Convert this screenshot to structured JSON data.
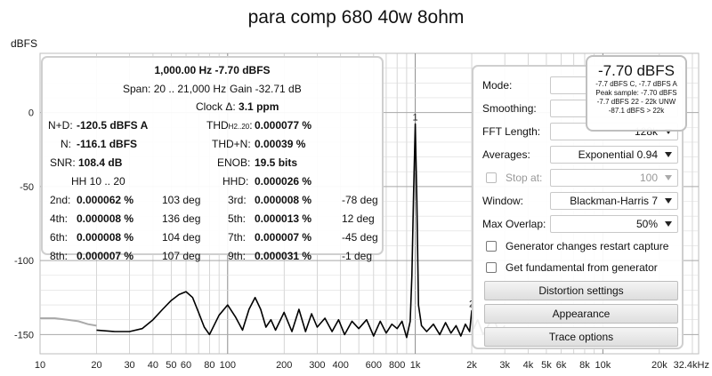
{
  "chart_data": {
    "type": "line",
    "title": "para comp 680 40w 8ohm",
    "ylabel": "dBFS",
    "xlabel": "",
    "x_scale": "log",
    "xlim": [
      10,
      32400
    ],
    "ylim": [
      -163,
      40
    ],
    "grid": true,
    "y_ticks": [
      {
        "value": 0,
        "label": "0"
      },
      {
        "value": -50,
        "label": "-50"
      },
      {
        "value": -100,
        "label": "-100"
      },
      {
        "value": -150,
        "label": "-150"
      }
    ],
    "x_ticks": [
      {
        "value": 10,
        "label": "10"
      },
      {
        "value": 20,
        "label": "20"
      },
      {
        "value": 30,
        "label": "30"
      },
      {
        "value": 40,
        "label": "40"
      },
      {
        "value": 50,
        "label": "50"
      },
      {
        "value": 60,
        "label": "60"
      },
      {
        "value": 80,
        "label": "80"
      },
      {
        "value": 100,
        "label": "100"
      },
      {
        "value": 200,
        "label": "200"
      },
      {
        "value": 300,
        "label": "300"
      },
      {
        "value": 400,
        "label": "400"
      },
      {
        "value": 600,
        "label": "600"
      },
      {
        "value": 800,
        "label": "800"
      },
      {
        "value": 1000,
        "label": "1k"
      },
      {
        "value": 2000,
        "label": "2k"
      },
      {
        "value": 3000,
        "label": "3k"
      },
      {
        "value": 4000,
        "label": "4k"
      },
      {
        "value": 5000,
        "label": "5k"
      },
      {
        "value": 6000,
        "label": "6k"
      },
      {
        "value": 8000,
        "label": "8k"
      },
      {
        "value": 10000,
        "label": "10k"
      },
      {
        "value": 20000,
        "label": "20k"
      },
      {
        "value": 32400,
        "label": "32.4kHz"
      }
    ],
    "grey_series": {
      "x": [
        10,
        12,
        14,
        16,
        18,
        20
      ],
      "y": [
        -139,
        -139,
        -140,
        -141,
        -143,
        -144
      ]
    },
    "series": [
      {
        "x": [
          20,
          25,
          30,
          35,
          40,
          45,
          50,
          55,
          60,
          65,
          70,
          75,
          80,
          90,
          100,
          110,
          120,
          130,
          140,
          150,
          160,
          170,
          180,
          200,
          220,
          240,
          260,
          280,
          300,
          330,
          360,
          390,
          420,
          460,
          500,
          550,
          600,
          650,
          700,
          750,
          800,
          850,
          900,
          940,
          960,
          980,
          995,
          1000,
          1005,
          1020,
          1040,
          1080,
          1150,
          1250,
          1350,
          1450,
          1550,
          1650,
          1750,
          1850,
          1950,
          2000,
          2050,
          2150,
          2300,
          2600,
          2800,
          3000
        ],
        "y": [
          -147,
          -148,
          -148,
          -146,
          -140,
          -133,
          -127,
          -123,
          -121,
          -125,
          -135,
          -145,
          -150,
          -137,
          -130,
          -138,
          -147,
          -133,
          -125,
          -133,
          -145,
          -140,
          -147,
          -135,
          -148,
          -133,
          -148,
          -136,
          -145,
          -139,
          -148,
          -140,
          -150,
          -141,
          -146,
          -140,
          -151,
          -141,
          -149,
          -143,
          -146,
          -141,
          -152,
          -141,
          -110,
          -55,
          -20,
          -7.7,
          -20,
          -60,
          -130,
          -144,
          -148,
          -143,
          -150,
          -142,
          -149,
          -144,
          -151,
          -143,
          -148,
          -134,
          -146,
          -140,
          -150,
          -138,
          -149,
          -144
        ]
      }
    ],
    "annotations": [
      {
        "x": 1000,
        "y": -7.7,
        "label": "1"
      },
      {
        "x": 2000,
        "y": -134,
        "label": "2"
      }
    ]
  },
  "stats": {
    "line1": "1,000.00 Hz  -7.70 dBFS",
    "span": "Span: 20 .. 21,000 Hz",
    "gain": "Gain -32.71 dB",
    "clock_label": "Clock Δ:",
    "clock_value": "3.1 ppm",
    "n_d_label": "N+D:",
    "n_d_value": "-120.5 dBFS A",
    "thd_label": "THD",
    "thd_sub": "H2..20",
    "thd_value": "0.000077 %",
    "n_label": "N:",
    "n_value": "-116.1 dBFS",
    "thdn_label": "THD+N:",
    "thdn_value": "0.00039 %",
    "snr_label": "SNR:",
    "snr_value": "108.4 dB",
    "enob_label": "ENOB:",
    "enob_value": "19.5 bits",
    "hh_label": "HH 10 .. 20",
    "hhd_label": "HHD:",
    "hhd_value": "0.000026 %",
    "harmonics": [
      {
        "label": "2nd:",
        "pct": "0.000062 %",
        "deg": "103 deg"
      },
      {
        "label": "3rd:",
        "pct": "0.000008 %",
        "deg": "-78 deg"
      },
      {
        "label": "4th:",
        "pct": "0.000008 %",
        "deg": "136 deg"
      },
      {
        "label": "5th:",
        "pct": "0.000013 %",
        "deg": "12 deg"
      },
      {
        "label": "6th:",
        "pct": "0.000008 %",
        "deg": "104 deg"
      },
      {
        "label": "7th:",
        "pct": "0.000007 %",
        "deg": "-45 deg"
      },
      {
        "label": "8th:",
        "pct": "0.000007 %",
        "deg": "107 deg"
      },
      {
        "label": "9th:",
        "pct": "0.000031 %",
        "deg": "-1 deg"
      }
    ]
  },
  "controls": {
    "mode_label": "Mode:",
    "smoothing_label": "Smoothing:",
    "fft_label": "FFT Length:",
    "fft_value": "128k",
    "averages_label": "Averages:",
    "averages_value": "Exponential 0.94",
    "stop_label": "Stop at:",
    "stop_value": "100",
    "window_label": "Window:",
    "window_value": "Blackman-Harris 7",
    "overlap_label": "Max Overlap:",
    "overlap_value": "50%",
    "gen_restart_label": "Generator changes restart capture",
    "fund_label": "Get fundamental from generator",
    "distortion_btn": "Distortion settings",
    "appearance_btn": "Appearance",
    "trace_btn": "Trace options"
  },
  "readout": {
    "main": "-7.70 dBFS",
    "line1": "-7.7 dBFS C, -7.7 dBFS A",
    "line2": "Peak sample: -7.70 dBFS",
    "line3": "-7.7 dBFS 22 - 22k UNW",
    "line4": "-87.1 dBFS > 22k"
  },
  "colors": {
    "trace": "#000000",
    "grey_trace": "#aaaaaa",
    "grid": "#c4c4c4"
  }
}
